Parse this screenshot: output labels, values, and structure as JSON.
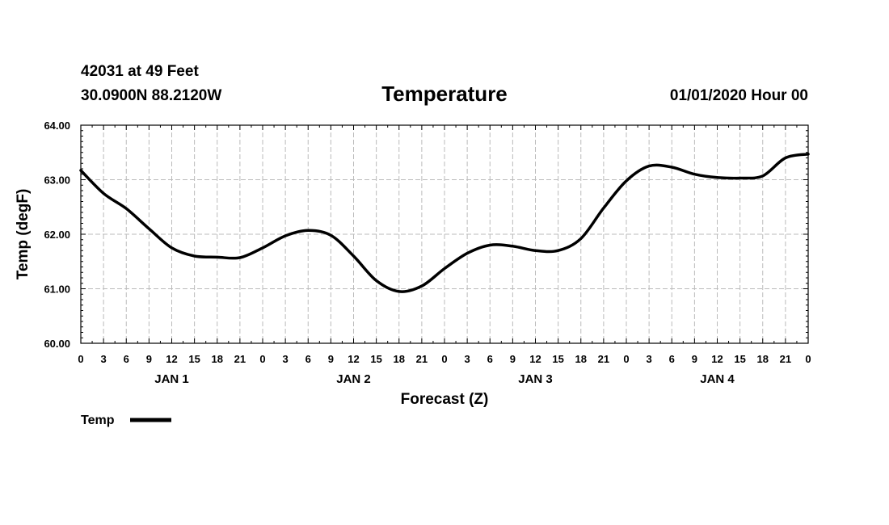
{
  "header": {
    "station": "42031 at 49 Feet",
    "coords": "30.0900N 88.2120W",
    "title": "Temperature",
    "datetime": "01/01/2020 Hour 00"
  },
  "legend": {
    "label": "Temp",
    "color": "#000000"
  },
  "chart_data": {
    "type": "line",
    "title": "Temperature",
    "xlabel": "Forecast (Z)",
    "ylabel": "Temp (degF)",
    "ylim": [
      60,
      64
    ],
    "xlim": [
      0,
      96
    ],
    "grid": true,
    "legend_position": "bottom-left",
    "y_ticks": [
      "60.00",
      "61.00",
      "62.00",
      "63.00",
      "64.00"
    ],
    "x_ticks": [
      "0",
      "3",
      "6",
      "9",
      "12",
      "15",
      "18",
      "21",
      "0",
      "3",
      "6",
      "9",
      "12",
      "15",
      "18",
      "21",
      "0",
      "3",
      "6",
      "9",
      "12",
      "15",
      "18",
      "21",
      "0",
      "3",
      "6",
      "9",
      "12",
      "15",
      "18",
      "21",
      "0"
    ],
    "day_labels": [
      "JAN 1",
      "JAN 2",
      "JAN 3",
      "JAN 4"
    ],
    "series": [
      {
        "name": "Temp",
        "color": "#000000",
        "x": [
          0,
          3,
          6,
          9,
          12,
          15,
          18,
          21,
          24,
          27,
          30,
          33,
          36,
          39,
          42,
          45,
          48,
          51,
          54,
          57,
          60,
          63,
          66,
          69,
          72,
          75,
          78,
          81,
          84,
          87,
          90,
          93,
          96
        ],
        "y": [
          63.17,
          62.75,
          62.47,
          62.1,
          61.75,
          61.6,
          61.58,
          61.57,
          61.75,
          61.97,
          62.07,
          61.98,
          61.6,
          61.15,
          60.95,
          61.05,
          61.37,
          61.65,
          61.8,
          61.78,
          61.7,
          61.7,
          61.92,
          62.48,
          62.98,
          63.25,
          63.23,
          63.1,
          63.04,
          63.03,
          63.07,
          63.4,
          63.47
        ]
      }
    ]
  }
}
